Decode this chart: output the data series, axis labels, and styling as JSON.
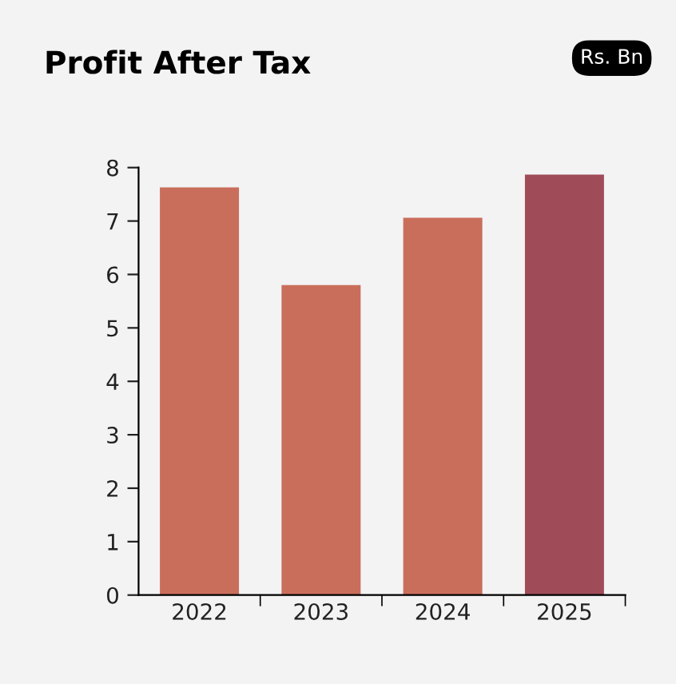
{
  "chart_data": {
    "type": "bar",
    "title": "Profit After Tax",
    "annotations": [
      "Rs. Bn"
    ],
    "categories": [
      "2022",
      "2023",
      "2024",
      "2025"
    ],
    "values": [
      7.63,
      5.8,
      7.06,
      7.87
    ],
    "colors": [
      "#c96e5b",
      "#c96e5b",
      "#c96e5b",
      "#a04c58"
    ],
    "ylim": [
      0,
      8
    ],
    "yticks": [
      0,
      1,
      2,
      3,
      4,
      5,
      6,
      7,
      8
    ],
    "grid": false
  }
}
